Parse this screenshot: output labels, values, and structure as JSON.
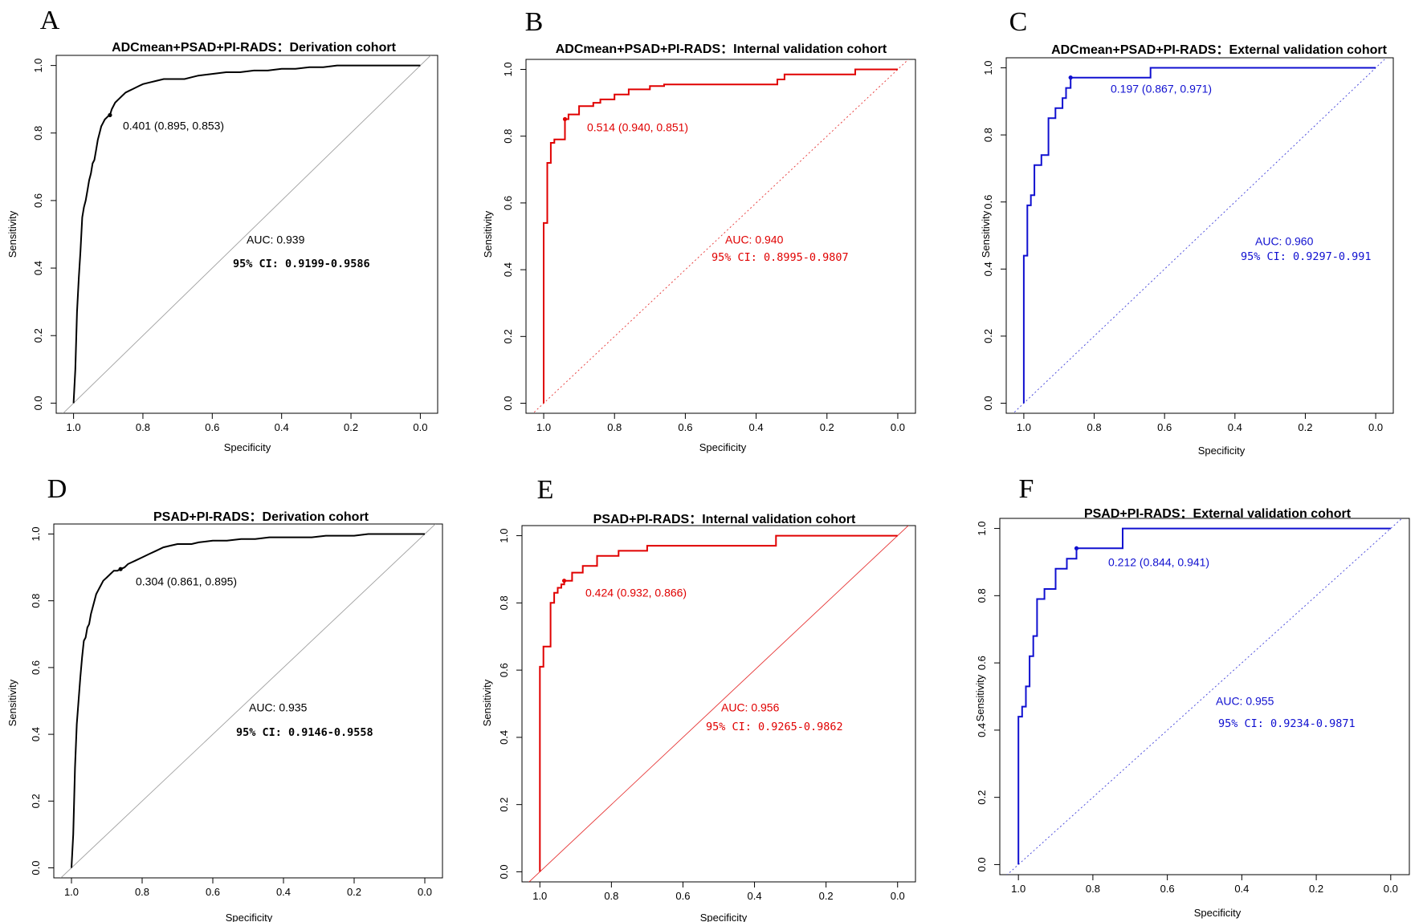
{
  "chart_data": [
    {
      "type": "line",
      "panel_letter": "A",
      "title": "ADCmean+PSAD+PI-RADS：Derivation cohort",
      "xlabel": "Specificity",
      "ylabel": "Sensitivity",
      "xlim": [
        1.05,
        -0.05
      ],
      "ylim": [
        -0.03,
        1.03
      ],
      "x_ticks": [
        "1.0",
        "0.8",
        "0.6",
        "0.4",
        "0.2",
        "0.0"
      ],
      "y_ticks": [
        "0.0",
        "0.2",
        "0.4",
        "0.6",
        "0.8",
        "1.0"
      ],
      "color": "#000000",
      "diagonal_style": "solid-grey",
      "threshold_label": "0.401 (0.895, 0.853)",
      "auc_label": "AUC: 0.939",
      "ci_label": "95% CI: 0.9199-0.9586",
      "ci_bold": true,
      "threshold_point": {
        "specificity": 0.895,
        "sensitivity": 0.853
      },
      "specificity": [
        1.0,
        0.995,
        0.99,
        0.985,
        0.98,
        0.975,
        0.97,
        0.965,
        0.96,
        0.955,
        0.95,
        0.945,
        0.94,
        0.935,
        0.93,
        0.925,
        0.92,
        0.915,
        0.91,
        0.905,
        0.9,
        0.895,
        0.89,
        0.88,
        0.87,
        0.86,
        0.85,
        0.84,
        0.83,
        0.82,
        0.81,
        0.8,
        0.78,
        0.76,
        0.74,
        0.72,
        0.7,
        0.68,
        0.66,
        0.64,
        0.6,
        0.56,
        0.52,
        0.48,
        0.44,
        0.4,
        0.36,
        0.32,
        0.28,
        0.24,
        0.2,
        0.16,
        0.12,
        0.08,
        0.04,
        0.0
      ],
      "sensitivity": [
        0.0,
        0.1,
        0.27,
        0.37,
        0.45,
        0.55,
        0.58,
        0.6,
        0.63,
        0.66,
        0.68,
        0.71,
        0.72,
        0.75,
        0.78,
        0.8,
        0.82,
        0.83,
        0.84,
        0.845,
        0.85,
        0.853,
        0.87,
        0.89,
        0.9,
        0.91,
        0.92,
        0.925,
        0.93,
        0.935,
        0.94,
        0.945,
        0.95,
        0.955,
        0.96,
        0.96,
        0.96,
        0.96,
        0.965,
        0.97,
        0.975,
        0.98,
        0.98,
        0.985,
        0.985,
        0.99,
        0.99,
        0.995,
        0.995,
        1.0,
        1.0,
        1.0,
        1.0,
        1.0,
        1.0,
        1.0
      ]
    },
    {
      "type": "line",
      "panel_letter": "B",
      "title": "ADCmean+PSAD+PI-RADS：Internal validation cohort",
      "xlabel": "Specificity",
      "ylabel": "Sensitivity",
      "xlim": [
        1.05,
        -0.05
      ],
      "ylim": [
        -0.03,
        1.03
      ],
      "x_ticks": [
        "1.0",
        "0.8",
        "0.6",
        "0.4",
        "0.2",
        "0.0"
      ],
      "y_ticks": [
        "0.0",
        "0.2",
        "0.4",
        "0.6",
        "0.8",
        "1.0"
      ],
      "color": "#e00000",
      "diagonal_style": "dotted-color",
      "threshold_label": "0.514 (0.940, 0.851)",
      "auc_label": "AUC: 0.940",
      "ci_label": "95% CI: 0.8995-0.9807",
      "ci_bold": false,
      "threshold_point": {
        "specificity": 0.94,
        "sensitivity": 0.851
      },
      "specificity": [
        1.0,
        1.0,
        0.99,
        0.99,
        0.98,
        0.98,
        0.97,
        0.97,
        0.94,
        0.94,
        0.93,
        0.93,
        0.9,
        0.9,
        0.86,
        0.86,
        0.84,
        0.84,
        0.8,
        0.8,
        0.76,
        0.76,
        0.7,
        0.7,
        0.66,
        0.66,
        0.34,
        0.34,
        0.32,
        0.32,
        0.12,
        0.12,
        0.0
      ],
      "sensitivity": [
        0.0,
        0.54,
        0.54,
        0.72,
        0.72,
        0.78,
        0.78,
        0.79,
        0.79,
        0.851,
        0.851,
        0.865,
        0.865,
        0.89,
        0.89,
        0.9,
        0.9,
        0.91,
        0.91,
        0.925,
        0.925,
        0.94,
        0.94,
        0.95,
        0.95,
        0.955,
        0.955,
        0.97,
        0.97,
        0.985,
        0.985,
        1.0,
        1.0
      ]
    },
    {
      "type": "line",
      "panel_letter": "C",
      "title": "ADCmean+PSAD+PI-RADS：External validation cohort",
      "xlabel": "Specificity",
      "ylabel": "Sensitivity",
      "xlim": [
        1.05,
        -0.05
      ],
      "ylim": [
        -0.03,
        1.03
      ],
      "x_ticks": [
        "1.0",
        "0.8",
        "0.6",
        "0.4",
        "0.2",
        "0.0"
      ],
      "y_ticks": [
        "0.0",
        "0.2",
        "0.4",
        "0.6",
        "0.8",
        "1.0"
      ],
      "color": "#1010d0",
      "diagonal_style": "dotted-color",
      "threshold_label": "0.197 (0.867, 0.971)",
      "auc_label": "AUC: 0.960",
      "ci_label": "95% CI: 0.9297-0.991",
      "ci_bold": false,
      "threshold_point": {
        "specificity": 0.867,
        "sensitivity": 0.971
      },
      "specificity": [
        1.0,
        1.0,
        0.99,
        0.99,
        0.98,
        0.98,
        0.97,
        0.97,
        0.95,
        0.95,
        0.93,
        0.93,
        0.91,
        0.91,
        0.89,
        0.89,
        0.88,
        0.88,
        0.867,
        0.867,
        0.64,
        0.64,
        0.0
      ],
      "sensitivity": [
        0.0,
        0.44,
        0.44,
        0.59,
        0.59,
        0.62,
        0.62,
        0.71,
        0.71,
        0.74,
        0.74,
        0.85,
        0.85,
        0.88,
        0.88,
        0.91,
        0.91,
        0.94,
        0.94,
        0.971,
        0.971,
        1.0,
        1.0
      ]
    },
    {
      "type": "line",
      "panel_letter": "D",
      "title": "PSAD+PI-RADS：Derivation cohort",
      "xlabel": "Specificity",
      "ylabel": "Sensitivity",
      "xlim": [
        1.05,
        -0.05
      ],
      "ylim": [
        -0.03,
        1.03
      ],
      "x_ticks": [
        "1.0",
        "0.8",
        "0.6",
        "0.4",
        "0.2",
        "0.0"
      ],
      "y_ticks": [
        "0.0",
        "0.2",
        "0.4",
        "0.6",
        "0.8",
        "1.0"
      ],
      "color": "#000000",
      "diagonal_style": "solid-grey",
      "threshold_label": "0.304 (0.861, 0.895)",
      "auc_label": "AUC: 0.935",
      "ci_label": "95% CI: 0.9146-0.9558",
      "ci_bold": true,
      "threshold_point": {
        "specificity": 0.861,
        "sensitivity": 0.895
      },
      "specificity": [
        1.0,
        0.995,
        0.99,
        0.985,
        0.98,
        0.975,
        0.97,
        0.965,
        0.96,
        0.955,
        0.95,
        0.945,
        0.94,
        0.935,
        0.93,
        0.925,
        0.92,
        0.915,
        0.91,
        0.9,
        0.89,
        0.88,
        0.87,
        0.861,
        0.85,
        0.84,
        0.82,
        0.8,
        0.78,
        0.76,
        0.74,
        0.72,
        0.7,
        0.68,
        0.66,
        0.64,
        0.6,
        0.56,
        0.52,
        0.48,
        0.44,
        0.4,
        0.36,
        0.32,
        0.28,
        0.24,
        0.2,
        0.16,
        0.12,
        0.08,
        0.04,
        0.0
      ],
      "sensitivity": [
        0.0,
        0.1,
        0.3,
        0.43,
        0.5,
        0.57,
        0.63,
        0.68,
        0.69,
        0.72,
        0.73,
        0.76,
        0.78,
        0.8,
        0.82,
        0.83,
        0.84,
        0.85,
        0.86,
        0.87,
        0.88,
        0.89,
        0.89,
        0.895,
        0.9,
        0.91,
        0.92,
        0.93,
        0.94,
        0.95,
        0.96,
        0.965,
        0.97,
        0.97,
        0.97,
        0.975,
        0.98,
        0.98,
        0.985,
        0.985,
        0.99,
        0.99,
        0.99,
        0.99,
        0.995,
        0.995,
        0.995,
        1.0,
        1.0,
        1.0,
        1.0,
        1.0
      ]
    },
    {
      "type": "line",
      "panel_letter": "E",
      "title": "PSAD+PI-RADS：Internal validation cohort",
      "xlabel": "Specificity",
      "ylabel": "Sensitivity",
      "xlim": [
        1.05,
        -0.05
      ],
      "ylim": [
        -0.03,
        1.03
      ],
      "x_ticks": [
        "1.0",
        "0.8",
        "0.6",
        "0.4",
        "0.2",
        "0.0"
      ],
      "y_ticks": [
        "0.0",
        "0.2",
        "0.4",
        "0.6",
        "0.8",
        "1.0"
      ],
      "color": "#e00000",
      "diagonal_style": "solid-color",
      "threshold_label": "0.424 (0.932, 0.866)",
      "auc_label": "AUC: 0.956",
      "ci_label": "95% CI: 0.9265-0.9862",
      "ci_bold": false,
      "threshold_point": {
        "specificity": 0.932,
        "sensitivity": 0.866
      },
      "specificity": [
        1.0,
        1.0,
        0.99,
        0.99,
        0.97,
        0.97,
        0.96,
        0.96,
        0.95,
        0.95,
        0.94,
        0.94,
        0.932,
        0.932,
        0.91,
        0.91,
        0.88,
        0.88,
        0.84,
        0.84,
        0.78,
        0.78,
        0.7,
        0.7,
        0.34,
        0.34,
        0.0
      ],
      "sensitivity": [
        0.0,
        0.61,
        0.61,
        0.67,
        0.67,
        0.8,
        0.8,
        0.83,
        0.83,
        0.845,
        0.845,
        0.855,
        0.855,
        0.866,
        0.866,
        0.89,
        0.89,
        0.91,
        0.91,
        0.94,
        0.94,
        0.955,
        0.955,
        0.97,
        0.97,
        1.0,
        1.0
      ]
    },
    {
      "type": "line",
      "panel_letter": "F",
      "title": "PSAD+PI-RADS：External validation cohort",
      "xlabel": "Specificity",
      "ylabel": "Sensitivity",
      "xlim": [
        1.05,
        -0.05
      ],
      "ylim": [
        -0.03,
        1.03
      ],
      "x_ticks": [
        "1.0",
        "0.8",
        "0.6",
        "0.4",
        "0.2",
        "0.0"
      ],
      "y_ticks": [
        "0.0",
        "0.2",
        "0.4",
        "0.6",
        "0.8",
        "1.0"
      ],
      "color": "#1010d0",
      "diagonal_style": "dotted-color",
      "threshold_label": "0.212 (0.844, 0.941)",
      "auc_label": "AUC: 0.955",
      "ci_label": "95% CI: 0.9234-0.9871",
      "ci_bold": false,
      "threshold_point": {
        "specificity": 0.844,
        "sensitivity": 0.941
      },
      "specificity": [
        1.0,
        1.0,
        0.99,
        0.99,
        0.98,
        0.98,
        0.97,
        0.97,
        0.96,
        0.96,
        0.95,
        0.95,
        0.93,
        0.93,
        0.9,
        0.9,
        0.87,
        0.87,
        0.844,
        0.844,
        0.72,
        0.72,
        0.0
      ],
      "sensitivity": [
        0.0,
        0.44,
        0.44,
        0.47,
        0.47,
        0.53,
        0.53,
        0.62,
        0.62,
        0.68,
        0.68,
        0.79,
        0.79,
        0.82,
        0.82,
        0.88,
        0.88,
        0.91,
        0.91,
        0.941,
        0.941,
        1.0,
        1.0
      ]
    }
  ]
}
